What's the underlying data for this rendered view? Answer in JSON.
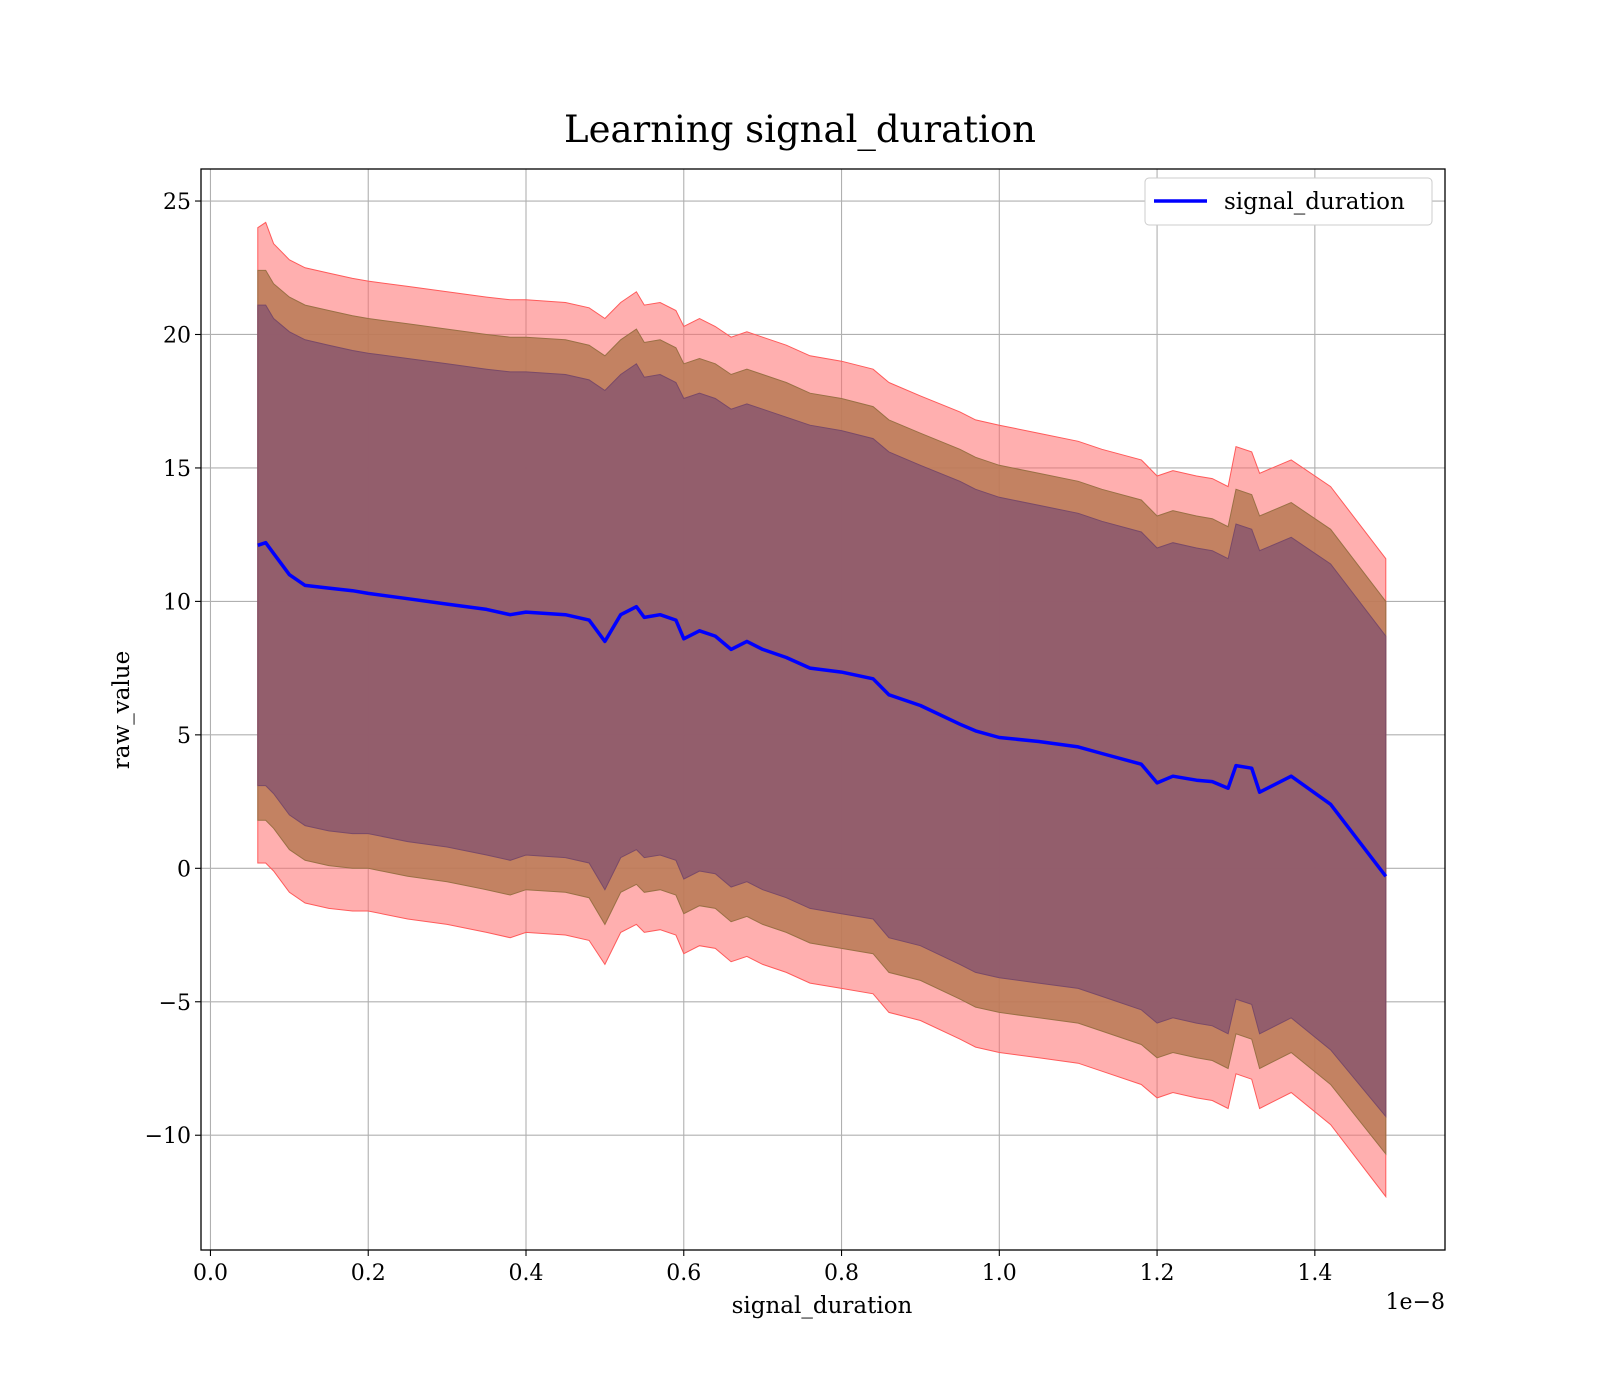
{
  "chart_data": {
    "type": "line",
    "title": "Learning signal_duration",
    "xlabel": "signal_duration",
    "ylabel": "raw_value",
    "x_offset_label": "1e−8",
    "xlim": [
      -0.012,
      1.565
    ],
    "ylim": [
      -14.3,
      26.2
    ],
    "xticks": [
      0.0,
      0.2,
      0.4,
      0.6,
      0.8,
      1.0,
      1.2,
      1.4
    ],
    "xtick_labels": [
      "0.0",
      "0.2",
      "0.4",
      "0.6",
      "0.8",
      "1.0",
      "1.2",
      "1.4"
    ],
    "yticks": [
      -10,
      -5,
      0,
      5,
      10,
      15,
      20,
      25
    ],
    "ytick_labels": [
      "−10",
      "−5",
      "0",
      "5",
      "10",
      "15",
      "20",
      "25"
    ],
    "grid": true,
    "legend_position": "top-right",
    "colors": {
      "line": "#0000ff",
      "band_outer": "#ff6e6e",
      "band_middle": "#b87a55",
      "band_inner": "#8e5a6e"
    },
    "series": [
      {
        "name": "signal_duration",
        "x": [
          0.06,
          0.07,
          0.08,
          0.1,
          0.12,
          0.15,
          0.18,
          0.2,
          0.25,
          0.3,
          0.35,
          0.38,
          0.4,
          0.45,
          0.48,
          0.5,
          0.52,
          0.54,
          0.55,
          0.57,
          0.59,
          0.6,
          0.62,
          0.64,
          0.66,
          0.68,
          0.7,
          0.73,
          0.76,
          0.8,
          0.84,
          0.86,
          0.9,
          0.95,
          0.97,
          1.0,
          1.05,
          1.1,
          1.13,
          1.18,
          1.2,
          1.22,
          1.25,
          1.27,
          1.29,
          1.3,
          1.32,
          1.33,
          1.37,
          1.42,
          1.49
        ],
        "values": [
          12.1,
          12.2,
          11.8,
          11.0,
          10.6,
          10.5,
          10.4,
          10.3,
          10.1,
          9.9,
          9.7,
          9.5,
          9.6,
          9.5,
          9.3,
          8.5,
          9.5,
          9.8,
          9.4,
          9.5,
          9.3,
          8.6,
          8.9,
          8.7,
          8.2,
          8.5,
          8.2,
          7.9,
          7.5,
          7.35,
          7.1,
          6.5,
          6.1,
          5.4,
          5.15,
          4.9,
          4.75,
          4.55,
          4.3,
          3.9,
          3.2,
          3.45,
          3.3,
          3.25,
          3.0,
          3.85,
          3.75,
          2.85,
          3.45,
          2.4,
          -0.3
        ],
        "band_inner_upper": [
          21.1,
          21.1,
          20.6,
          20.1,
          19.8,
          19.6,
          19.4,
          19.3,
          19.1,
          18.9,
          18.7,
          18.6,
          18.6,
          18.5,
          18.3,
          17.9,
          18.5,
          18.9,
          18.4,
          18.5,
          18.2,
          17.6,
          17.8,
          17.6,
          17.2,
          17.4,
          17.2,
          16.9,
          16.6,
          16.4,
          16.1,
          15.6,
          15.1,
          14.5,
          14.2,
          13.9,
          13.6,
          13.3,
          13.0,
          12.6,
          12.0,
          12.2,
          12.0,
          11.9,
          11.6,
          12.9,
          12.7,
          11.9,
          12.4,
          11.4,
          8.7
        ],
        "band_inner_lower": [
          3.1,
          3.1,
          2.8,
          2.0,
          1.6,
          1.4,
          1.3,
          1.3,
          1.0,
          0.8,
          0.5,
          0.3,
          0.5,
          0.4,
          0.2,
          -0.8,
          0.4,
          0.7,
          0.4,
          0.5,
          0.3,
          -0.4,
          -0.1,
          -0.2,
          -0.7,
          -0.5,
          -0.8,
          -1.1,
          -1.5,
          -1.7,
          -1.9,
          -2.6,
          -2.9,
          -3.6,
          -3.9,
          -4.1,
          -4.3,
          -4.5,
          -4.8,
          -5.3,
          -5.8,
          -5.6,
          -5.8,
          -5.9,
          -6.2,
          -4.9,
          -5.1,
          -6.2,
          -5.6,
          -6.8,
          -9.3
        ],
        "band_mid_upper": [
          22.4,
          22.4,
          21.9,
          21.4,
          21.1,
          20.9,
          20.7,
          20.6,
          20.4,
          20.2,
          20.0,
          19.9,
          19.9,
          19.8,
          19.6,
          19.2,
          19.8,
          20.2,
          19.7,
          19.8,
          19.5,
          18.9,
          19.1,
          18.9,
          18.5,
          18.7,
          18.5,
          18.2,
          17.8,
          17.6,
          17.3,
          16.8,
          16.3,
          15.7,
          15.4,
          15.1,
          14.8,
          14.5,
          14.2,
          13.8,
          13.2,
          13.4,
          13.2,
          13.1,
          12.8,
          14.2,
          14.0,
          13.2,
          13.7,
          12.7,
          10.0
        ],
        "band_mid_lower": [
          1.8,
          1.8,
          1.5,
          0.7,
          0.3,
          0.1,
          0.0,
          0.0,
          -0.3,
          -0.5,
          -0.8,
          -1.0,
          -0.8,
          -0.9,
          -1.1,
          -2.1,
          -0.9,
          -0.6,
          -0.9,
          -0.8,
          -1.0,
          -1.7,
          -1.4,
          -1.5,
          -2.0,
          -1.8,
          -2.1,
          -2.4,
          -2.8,
          -3.0,
          -3.2,
          -3.9,
          -4.2,
          -4.9,
          -5.2,
          -5.4,
          -5.6,
          -5.8,
          -6.1,
          -6.6,
          -7.1,
          -6.9,
          -7.1,
          -7.2,
          -7.5,
          -6.2,
          -6.4,
          -7.5,
          -6.9,
          -8.1,
          -10.7
        ],
        "band_outer_upper": [
          24.0,
          24.2,
          23.4,
          22.8,
          22.5,
          22.3,
          22.1,
          22.0,
          21.8,
          21.6,
          21.4,
          21.3,
          21.3,
          21.2,
          21.0,
          20.6,
          21.2,
          21.6,
          21.1,
          21.2,
          20.9,
          20.3,
          20.6,
          20.3,
          19.9,
          20.1,
          19.9,
          19.6,
          19.2,
          19.0,
          18.7,
          18.2,
          17.7,
          17.1,
          16.8,
          16.6,
          16.3,
          16.0,
          15.7,
          15.3,
          14.7,
          14.9,
          14.7,
          14.6,
          14.3,
          15.8,
          15.6,
          14.8,
          15.3,
          14.3,
          11.6
        ],
        "band_outer_lower": [
          0.2,
          0.2,
          -0.1,
          -0.9,
          -1.3,
          -1.5,
          -1.6,
          -1.6,
          -1.9,
          -2.1,
          -2.4,
          -2.6,
          -2.4,
          -2.5,
          -2.7,
          -3.6,
          -2.4,
          -2.1,
          -2.4,
          -2.3,
          -2.5,
          -3.2,
          -2.9,
          -3.0,
          -3.5,
          -3.3,
          -3.6,
          -3.9,
          -4.3,
          -4.5,
          -4.7,
          -5.4,
          -5.7,
          -6.4,
          -6.7,
          -6.9,
          -7.1,
          -7.3,
          -7.6,
          -8.1,
          -8.6,
          -8.4,
          -8.6,
          -8.7,
          -9.0,
          -7.7,
          -7.9,
          -9.0,
          -8.4,
          -9.6,
          -12.3
        ]
      }
    ]
  }
}
